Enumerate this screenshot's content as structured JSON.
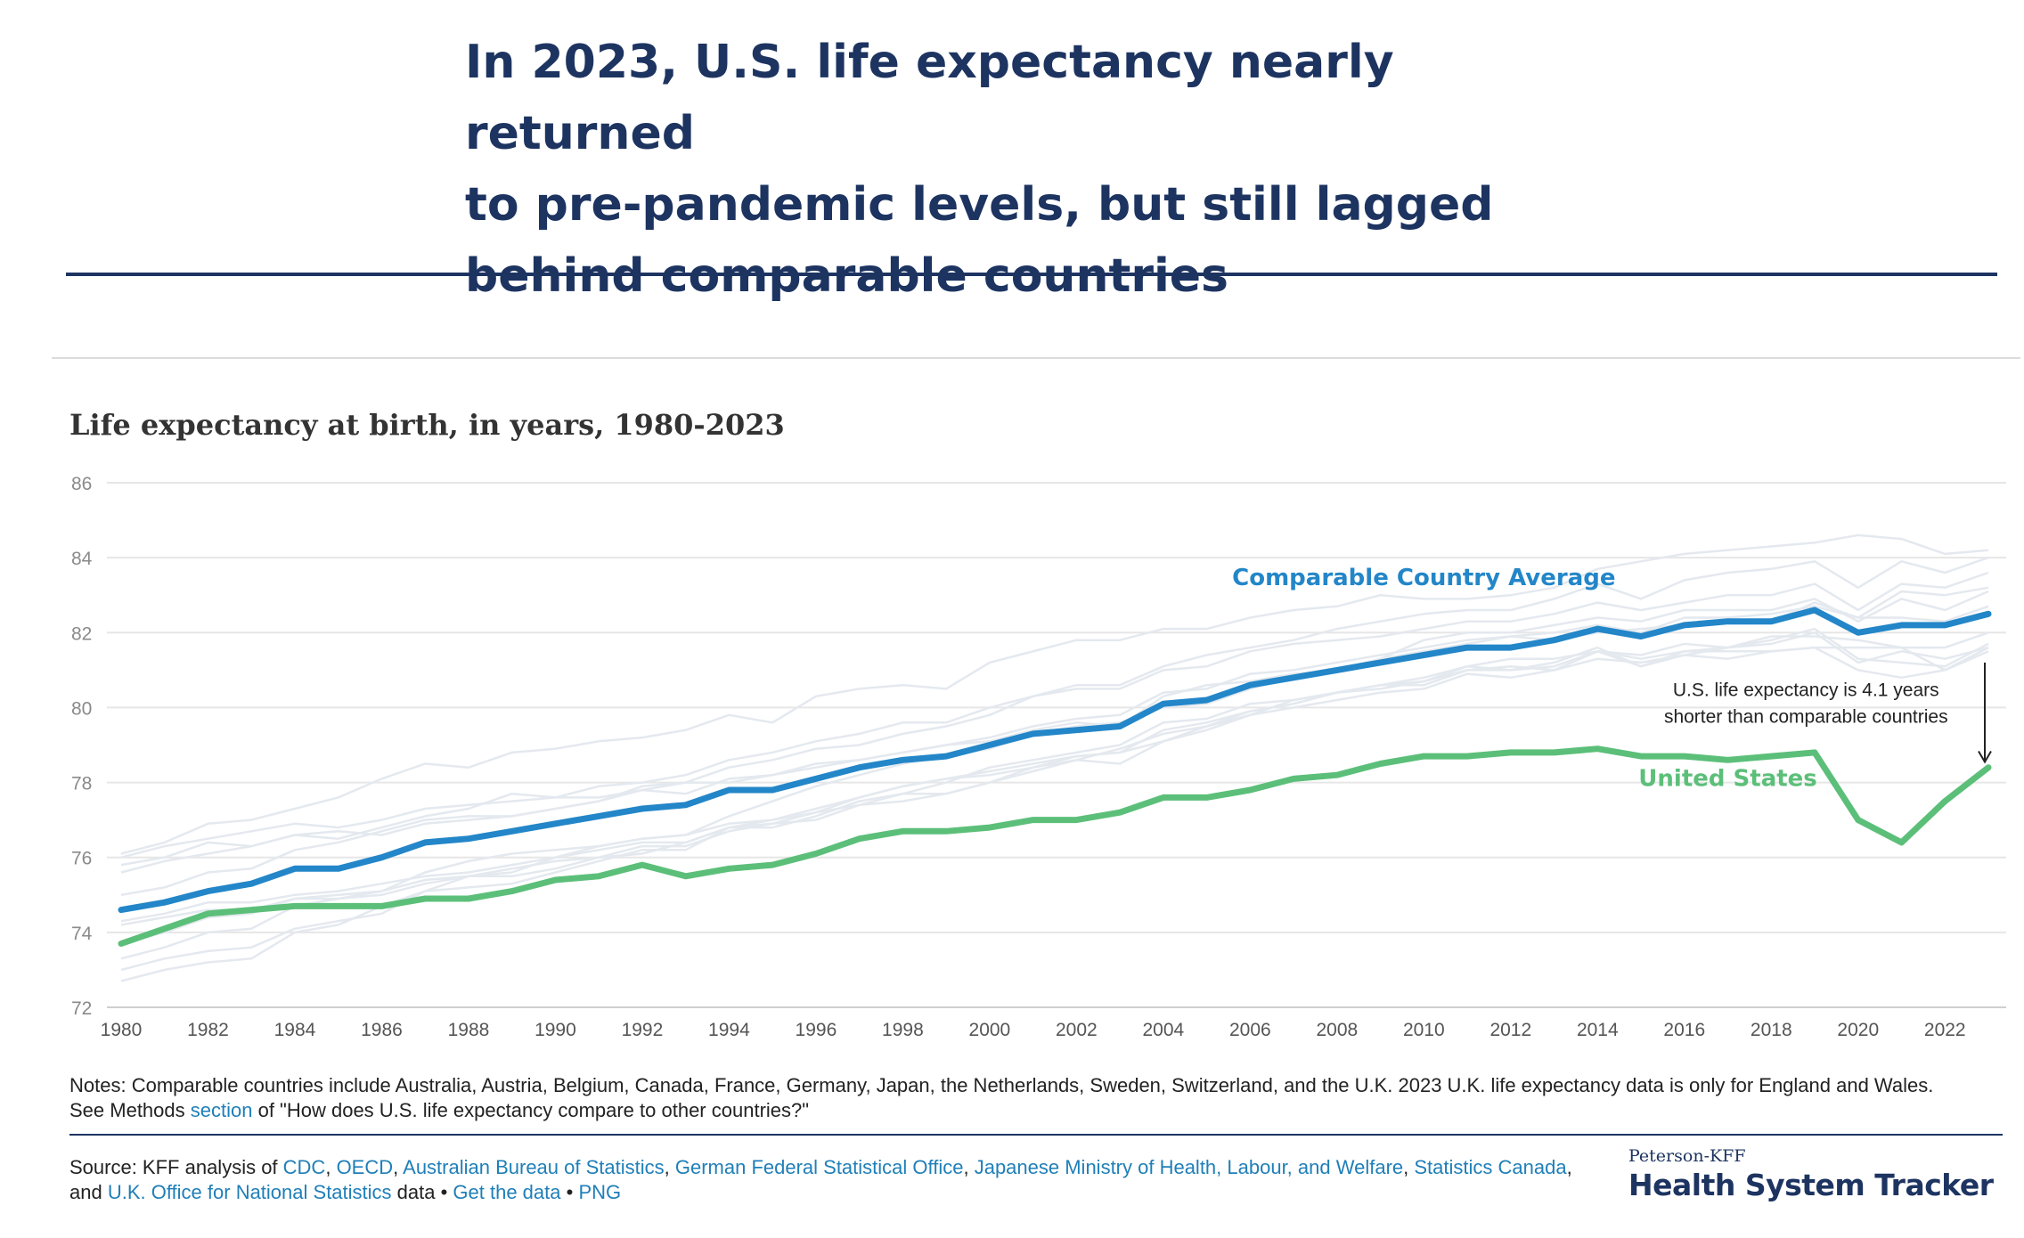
{
  "headline": {
    "line1": "In 2023, U.S. life expectancy nearly returned",
    "line2": "to pre-pandemic levels, but still lagged",
    "line3": "behind comparable countries"
  },
  "colors": {
    "navy": "#1d3461",
    "comparable": "#2386c8",
    "us": "#5cbf79",
    "background_lines": "#e4e9ef",
    "link": "#1f7fb8"
  },
  "chart_data": {
    "type": "line",
    "title": "Life expectancy at birth, in years, 1980-2023",
    "xlabel": "",
    "ylabel": "",
    "xlim": [
      1980,
      2023
    ],
    "ylim": [
      72,
      86
    ],
    "yticks": [
      72,
      74,
      76,
      78,
      80,
      82,
      84,
      86
    ],
    "xticks": [
      1980,
      1982,
      1984,
      1986,
      1988,
      1990,
      1992,
      1994,
      1996,
      1998,
      2000,
      2002,
      2004,
      2006,
      2008,
      2010,
      2012,
      2014,
      2016,
      2018,
      2020,
      2022
    ],
    "grid": true,
    "x": [
      1980,
      1981,
      1982,
      1983,
      1984,
      1985,
      1986,
      1987,
      1988,
      1989,
      1990,
      1991,
      1992,
      1993,
      1994,
      1995,
      1996,
      1997,
      1998,
      1999,
      2000,
      2001,
      2002,
      2003,
      2004,
      2005,
      2006,
      2007,
      2008,
      2009,
      2010,
      2011,
      2012,
      2013,
      2014,
      2015,
      2016,
      2017,
      2018,
      2019,
      2020,
      2021,
      2022,
      2023
    ],
    "series": [
      {
        "name": "Comparable Country Average",
        "color": "#2386c8",
        "values": [
          74.6,
          74.8,
          75.1,
          75.3,
          75.7,
          75.7,
          76.0,
          76.4,
          76.5,
          76.7,
          76.9,
          77.1,
          77.3,
          77.4,
          77.8,
          77.8,
          78.1,
          78.4,
          78.6,
          78.7,
          79.0,
          79.3,
          79.4,
          79.5,
          80.1,
          80.2,
          80.6,
          80.8,
          81.0,
          81.2,
          81.4,
          81.6,
          81.6,
          81.8,
          82.1,
          81.9,
          82.2,
          82.3,
          82.3,
          82.6,
          82.0,
          82.2,
          82.2,
          82.5
        ]
      },
      {
        "name": "United States",
        "color": "#5cbf79",
        "values": [
          73.7,
          74.1,
          74.5,
          74.6,
          74.7,
          74.7,
          74.7,
          74.9,
          74.9,
          75.1,
          75.4,
          75.5,
          75.8,
          75.5,
          75.7,
          75.8,
          76.1,
          76.5,
          76.7,
          76.7,
          76.8,
          77.0,
          77.0,
          77.2,
          77.6,
          77.6,
          77.8,
          78.1,
          78.2,
          78.5,
          78.7,
          78.7,
          78.8,
          78.8,
          78.9,
          78.7,
          78.7,
          78.6,
          78.7,
          78.8,
          77.0,
          76.4,
          77.5,
          78.4
        ]
      }
    ],
    "background_series": [
      [
        76.0,
        76.3,
        76.5,
        76.7,
        76.9,
        76.8,
        77.0,
        77.3,
        77.4,
        77.5,
        77.6,
        77.6,
        77.8,
        77.7,
        78.1,
        78.2,
        78.5,
        78.6,
        78.8,
        79.0,
        79.2,
        79.5,
        79.7,
        79.8,
        80.4,
        80.5,
        80.9,
        81.0,
        81.2,
        81.4,
        81.6,
        81.8,
        81.9,
        82.0,
        82.2,
        82.0,
        82.4,
        82.4,
        82.5,
        82.7,
        82.4,
        82.4,
        82.3,
        82.7
      ],
      [
        75.8,
        76.0,
        76.4,
        76.3,
        76.6,
        76.5,
        76.8,
        77.1,
        77.3,
        77.7,
        77.6,
        77.9,
        78.0,
        78.2,
        78.6,
        78.8,
        79.1,
        79.3,
        79.6,
        79.6,
        80.0,
        80.3,
        80.5,
        80.5,
        81.0,
        81.1,
        81.5,
        81.7,
        81.8,
        81.9,
        82.1,
        82.3,
        82.3,
        82.5,
        82.8,
        82.6,
        82.8,
        83.0,
        83.0,
        83.3,
        82.6,
        83.3,
        83.2,
        83.6
      ],
      [
        76.1,
        76.4,
        76.9,
        77.0,
        77.3,
        77.6,
        78.1,
        78.5,
        78.4,
        78.8,
        78.9,
        79.1,
        79.2,
        79.4,
        79.8,
        79.6,
        80.3,
        80.5,
        80.6,
        80.5,
        81.2,
        81.5,
        81.8,
        81.8,
        82.1,
        82.1,
        82.4,
        82.6,
        82.7,
        83.0,
        82.9,
        82.9,
        83.0,
        83.2,
        83.7,
        83.9,
        84.1,
        84.2,
        84.3,
        84.4,
        84.6,
        84.5,
        84.1,
        84.2
      ],
      [
        75.0,
        75.2,
        75.6,
        75.7,
        76.2,
        76.4,
        76.7,
        77.0,
        77.1,
        77.1,
        77.3,
        77.5,
        77.9,
        78.0,
        78.4,
        78.6,
        78.9,
        79.0,
        79.3,
        79.5,
        79.8,
        80.3,
        80.6,
        80.6,
        81.1,
        81.4,
        81.6,
        81.8,
        82.1,
        82.3,
        82.5,
        82.6,
        82.6,
        82.9,
        83.3,
        82.9,
        83.4,
        83.6,
        83.7,
        83.9,
        83.2,
        83.9,
        83.6,
        84.0
      ],
      [
        74.3,
        74.5,
        74.8,
        74.8,
        75.0,
        75.1,
        75.3,
        75.5,
        75.6,
        75.8,
        76.0,
        76.2,
        76.4,
        76.4,
        76.8,
        76.9,
        77.2,
        77.6,
        77.9,
        78.1,
        78.3,
        78.5,
        78.7,
        78.8,
        79.4,
        79.6,
        79.9,
        80.1,
        80.4,
        80.6,
        80.7,
        81.1,
        81.0,
        81.2,
        81.6,
        81.1,
        81.4,
        81.6,
        81.7,
        82.0,
        81.2,
        81.5,
        81.3,
        81.6
      ],
      [
        73.3,
        73.6,
        74.0,
        74.1,
        74.7,
        74.9,
        75.1,
        75.6,
        75.9,
        76.1,
        76.2,
        76.3,
        76.5,
        76.6,
        76.9,
        77.0,
        77.2,
        77.4,
        77.5,
        77.7,
        78.0,
        78.4,
        78.7,
        78.8,
        79.1,
        79.5,
        79.8,
        80.2,
        80.4,
        80.6,
        80.8,
        81.1,
        81.3,
        81.3,
        81.5,
        81.4,
        81.7,
        81.6,
        81.9,
        81.9,
        81.8,
        81.6,
        81.6,
        82.0
      ],
      [
        73.0,
        73.3,
        73.5,
        73.6,
        74.1,
        74.3,
        74.5,
        75.1,
        75.2,
        75.3,
        75.6,
        75.9,
        76.2,
        76.2,
        76.8,
        77.0,
        77.3,
        77.6,
        77.9,
        78.1,
        78.2,
        78.4,
        78.6,
        78.9,
        79.3,
        79.5,
        79.9,
        80.1,
        80.4,
        80.5,
        80.7,
        81.0,
        81.0,
        81.1,
        81.5,
        81.1,
        81.5,
        81.5,
        81.5,
        81.6,
        81.6,
        81.6,
        81.0,
        81.5
      ],
      [
        74.2,
        74.4,
        74.6,
        74.6,
        74.9,
        75.0,
        75.1,
        75.4,
        75.5,
        75.7,
        75.9,
        76.0,
        76.3,
        76.3,
        76.7,
        76.9,
        77.0,
        77.4,
        77.7,
        77.7,
        78.0,
        78.3,
        78.6,
        78.5,
        79.1,
        79.4,
        79.8,
        80.0,
        80.2,
        80.4,
        80.5,
        80.9,
        80.8,
        81.0,
        81.3,
        81.2,
        81.4,
        81.3,
        81.5,
        81.6,
        81.0,
        80.8,
        81.0,
        81.6
      ],
      [
        72.7,
        73.0,
        73.2,
        73.3,
        74.0,
        74.2,
        74.7,
        75.1,
        75.5,
        75.5,
        75.7,
        76.0,
        76.1,
        76.4,
        76.8,
        76.8,
        77.1,
        77.5,
        77.7,
        78.0,
        78.4,
        78.6,
        78.8,
        79.0,
        79.6,
        79.7,
        80.1,
        80.2,
        80.4,
        80.6,
        80.6,
        81.0,
        81.1,
        81.0,
        81.5,
        81.3,
        81.5,
        81.6,
        81.8,
        82.1,
        81.3,
        81.2,
        81.1,
        81.7
      ],
      [
        75.6,
        75.9,
        76.1,
        76.3,
        76.6,
        76.7,
        76.6,
        76.9,
        77.0,
        77.1,
        77.3,
        77.5,
        77.8,
        78.0,
        78.0,
        78.2,
        78.4,
        78.6,
        78.8,
        79.0,
        79.1,
        79.4,
        79.6,
        79.5,
        80.3,
        80.6,
        80.7,
        80.9,
        81.0,
        81.3,
        81.5,
        81.7,
        81.9,
        81.8,
        82.0,
        82.1,
        82.2,
        82.3,
        82.3,
        82.8,
        82.4,
        83.1,
        83.0,
        83.2
      ],
      [
        73.7,
        74.0,
        74.4,
        74.5,
        74.9,
        74.9,
        75.0,
        75.3,
        75.5,
        75.6,
        76.0,
        76.3,
        76.5,
        76.6,
        77.1,
        77.5,
        77.9,
        78.2,
        78.5,
        78.7,
        78.9,
        79.3,
        79.5,
        79.6,
        80.0,
        80.1,
        80.5,
        80.8,
        81.0,
        81.3,
        81.8,
        82.0,
        82.0,
        82.2,
        82.4,
        82.3,
        82.6,
        82.6,
        82.6,
        82.9,
        82.3,
        82.9,
        82.6,
        83.1
      ]
    ],
    "annotations": [
      {
        "text": "Comparable Country Average",
        "x": 2010,
        "y": 83.5
      },
      {
        "text": "United States",
        "x": 2017,
        "y": 78.15
      },
      {
        "text_lines": [
          "U.S. life expectancy is 4.1 years",
          "shorter than comparable countries"
        ],
        "x": 2018.8,
        "y": 80.5
      }
    ],
    "gap_arrow": {
      "x": 2023,
      "from": 81.2,
      "to": 78.5
    }
  },
  "notes": {
    "text1": "Notes: Comparable countries include Australia, Austria, Belgium, Canada, France, Germany, Japan, the Netherlands, Sweden, Switzerland, and the U.K. 2023 U.K. life expectancy data is only for England and Wales.",
    "text2": "See Methods ",
    "link_section": "section",
    "text3": " of \"How does U.S. life expectancy compare to other countries?\""
  },
  "source": {
    "prefix": "Source: KFF analysis of ",
    "cdc": "CDC",
    "oecd": "OECD",
    "abs": "Australian Bureau of Statistics",
    "destatis": "German Federal Statistical Office",
    "japan": "Japanese Ministry of Health, Labour, and Welfare",
    "statcan": "Statistics Canada",
    "ons": "U.K. Office for National Statistics",
    "sep_comma": ", ",
    "and": ", and ",
    "data": " data • ",
    "get_data": "Get the data",
    "bullet": " • ",
    "png": "PNG"
  },
  "brand": {
    "small": "Peterson-KFF",
    "big": "Health System Tracker"
  }
}
